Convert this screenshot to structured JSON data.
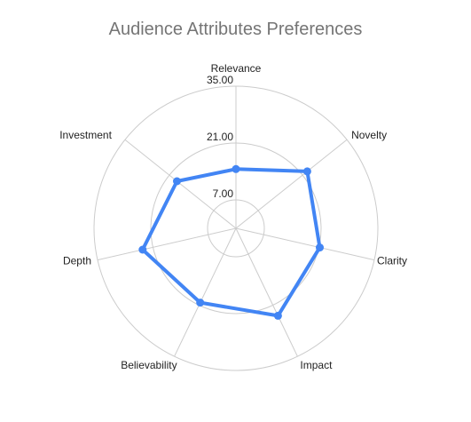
{
  "chart_data": {
    "type": "radar",
    "title": "Audience Attributes Preferences",
    "categories": [
      "Relevance",
      "Novelty",
      "Clarity",
      "Impact",
      "Believability",
      "Depth",
      "Investment"
    ],
    "rlim": [
      0,
      35
    ],
    "ticks": [
      7,
      21,
      35
    ],
    "tick_labels": [
      "7.00",
      "21.00",
      "35.00"
    ],
    "series": [
      {
        "values": [
          14.6,
          22.5,
          21.2,
          23.9,
          20.3,
          23.6,
          18.6
        ]
      }
    ],
    "series_color": "#4285f4",
    "grid": true,
    "legend": "none"
  }
}
